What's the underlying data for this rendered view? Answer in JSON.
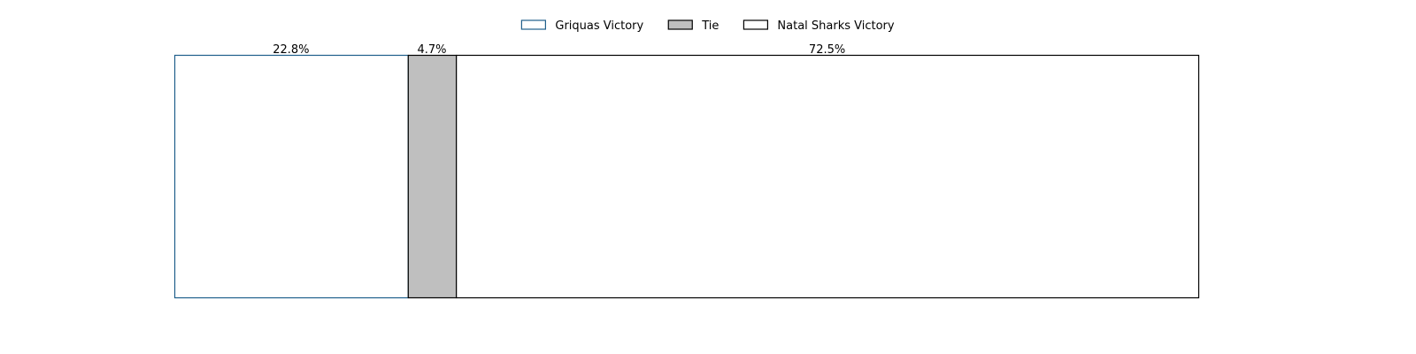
{
  "chart_data": {
    "type": "bar",
    "orientation": "horizontal",
    "stacked": true,
    "normalized_percent": true,
    "title": "",
    "xlabel": "",
    "ylabel": "",
    "xlim": [
      0,
      100
    ],
    "grid": false,
    "axes_visible": false,
    "legend_position": "top-center",
    "series": [
      {
        "name": "Griquas Victory",
        "value": 22.8,
        "label": "22.8%",
        "fill": "#ffffff",
        "edge": "#1f5f8b"
      },
      {
        "name": "Tie",
        "value": 4.7,
        "label": "4.7%",
        "fill": "#bfbfbf",
        "edge": "#000000"
      },
      {
        "name": "Natal Sharks Victory",
        "value": 72.5,
        "label": "72.5%",
        "fill": "#ffffff",
        "edge": "#000000"
      }
    ]
  }
}
